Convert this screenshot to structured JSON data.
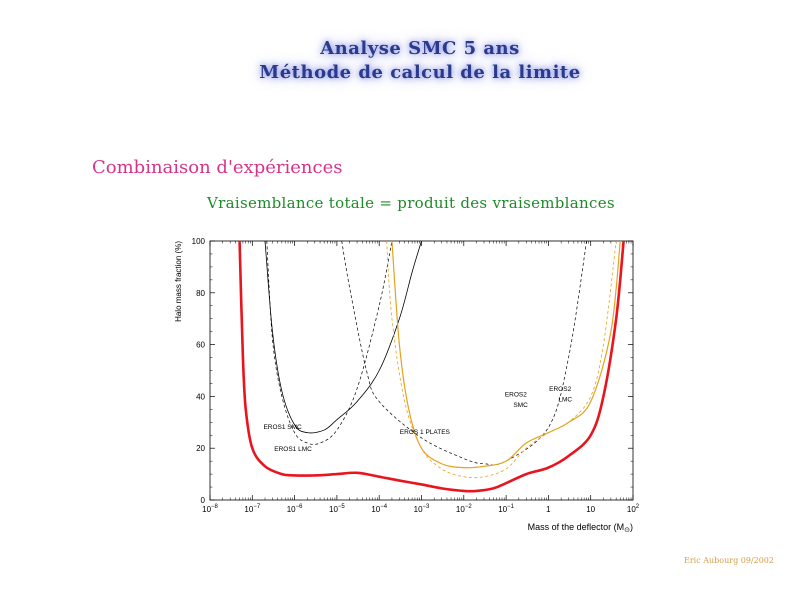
{
  "header": {
    "title_line1": "Analyse SMC 5 ans",
    "title_line2": "Méthode de calcul de la limite"
  },
  "section_title": "Combinaison d'expériences",
  "formula": "Vraisemblance totale =  produit des vraisemblances",
  "credit": "Eric Aubourg 09/2002",
  "colors": {
    "red": "#e8141e",
    "orange": "#e6a21e",
    "black": "#000000"
  },
  "chart_data": {
    "type": "line",
    "xlabel": "Mass of the deflector (M",
    "xlabel_sub": "⊙",
    "xlabel_end": ")",
    "ylabel": "Halo mass fraction (%)",
    "x_scale": "log",
    "xlim": [
      1e-08,
      100
    ],
    "ylim": [
      0,
      100
    ],
    "y_ticks": [
      "0",
      "20",
      "40",
      "60",
      "80",
      "100"
    ],
    "x_ticks": [
      {
        "value": 1e-08,
        "base": "10",
        "exp": "−8"
      },
      {
        "value": 1e-07,
        "base": "10",
        "exp": "−7"
      },
      {
        "value": 1e-06,
        "base": "10",
        "exp": "−6"
      },
      {
        "value": 1e-05,
        "base": "10",
        "exp": "−5"
      },
      {
        "value": 0.0001,
        "base": "10",
        "exp": "−4"
      },
      {
        "value": 0.001,
        "base": "10",
        "exp": "−3"
      },
      {
        "value": 0.01,
        "base": "10",
        "exp": "−2"
      },
      {
        "value": 0.1,
        "base": "10",
        "exp": "−1"
      },
      {
        "value": 1,
        "base": "1",
        "exp": ""
      },
      {
        "value": 10,
        "base": "10",
        "exp": ""
      },
      {
        "value": 100,
        "base": "10",
        "exp": "2"
      }
    ],
    "series": [
      {
        "key": "eros1_smc",
        "style": "solid-black",
        "x": [
          2e-07,
          3e-07,
          5e-07,
          1e-06,
          2e-06,
          5e-06,
          1e-05,
          3e-05,
          0.0001,
          0.0003,
          0.0006,
          0.001
        ],
        "y": [
          100,
          65,
          42,
          29,
          26,
          27,
          31,
          38,
          50,
          70,
          88,
          100
        ]
      },
      {
        "key": "eros1_lmc",
        "style": "dashed-black",
        "x": [
          2.2e-07,
          3e-07,
          5e-07,
          1e-06,
          2e-06,
          4e-06,
          1e-05,
          3e-05,
          0.0001,
          0.0002
        ],
        "y": [
          100,
          62,
          40,
          26,
          22,
          22,
          27,
          43,
          75,
          100
        ]
      },
      {
        "key": "eros1_plates",
        "style": "dashed-black",
        "x": [
          1.3e-05,
          2e-05,
          5e-05,
          0.0001,
          0.001,
          0.01,
          0.03,
          0.1,
          1.0,
          3,
          8
        ],
        "y": [
          100,
          82,
          50,
          38,
          24,
          16,
          14,
          15,
          28,
          55,
          100
        ]
      },
      {
        "key": "eros2_smc",
        "style": "solid-orange",
        "x": [
          0.0002,
          0.0003,
          0.0005,
          0.001,
          0.003,
          0.01,
          0.03,
          0.1,
          0.3,
          1,
          3,
          10,
          30,
          50
        ],
        "y": [
          100,
          60,
          35,
          20,
          14,
          12.5,
          13,
          15,
          22,
          26,
          30,
          38,
          65,
          100
        ]
      },
      {
        "key": "eros2_lmc",
        "style": "dashed-orange",
        "x": [
          0.00015,
          0.0002,
          0.0004,
          0.001,
          0.003,
          0.01,
          0.03,
          0.1,
          0.3,
          1,
          3,
          10,
          20,
          40
        ],
        "y": [
          100,
          70,
          38,
          20,
          12,
          9,
          9,
          12,
          20,
          26,
          30,
          40,
          60,
          100
        ]
      },
      {
        "key": "combined",
        "style": "solid-red",
        "x": [
          5e-08,
          6e-08,
          7e-08,
          1e-07,
          2e-07,
          5e-07,
          1e-06,
          3e-06,
          1e-05,
          3e-05,
          0.0001,
          0.0003,
          0.001,
          0.003,
          0.01,
          0.02,
          0.05,
          0.1,
          0.3,
          1,
          3,
          10,
          20,
          40,
          60
        ],
        "y": [
          100,
          55,
          35,
          20,
          13,
          10,
          9.5,
          9.5,
          10,
          10.5,
          9,
          7.5,
          6,
          4.5,
          3.5,
          3.5,
          4.5,
          6.5,
          10,
          12.5,
          17,
          25,
          40,
          70,
          100
        ]
      }
    ],
    "annotations": [
      {
        "text": "EROS1 SMC",
        "x": 5.2e-07,
        "y": 27.5
      },
      {
        "text": "EROS1 LMC",
        "x": 9.2e-07,
        "y": 19
      },
      {
        "text": "EROS 1 PLATES",
        "x": 0.0012,
        "y": 25.5
      },
      {
        "text": "EROS2",
        "x": 0.17,
        "y": 40
      },
      {
        "text": "SMC",
        "x": 0.22,
        "y": 36
      },
      {
        "text": "EROS2",
        "x": 1.9,
        "y": 42
      },
      {
        "text": "LMC",
        "x": 2.5,
        "y": 38
      }
    ]
  }
}
